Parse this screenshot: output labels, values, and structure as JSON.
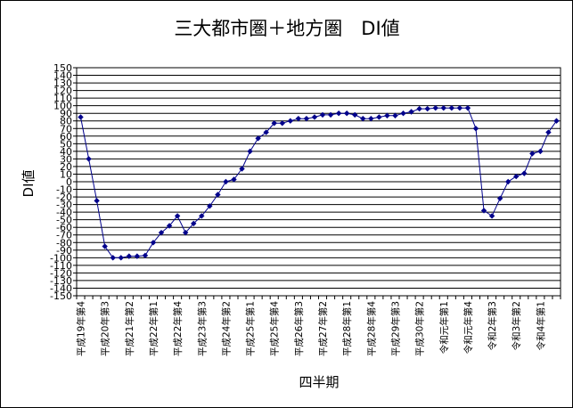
{
  "chart_data": {
    "type": "line",
    "title": "三大都市圏＋地方圏　DI値",
    "xlabel": "四半期",
    "ylabel": "DI値",
    "ylim": [
      -150,
      150
    ],
    "y_step": 10,
    "grid": true,
    "legend": "none",
    "colors": {
      "series": "#00008B",
      "grid": "#000000",
      "background": "#FFFFFF"
    },
    "x_tick_labels": [
      "平成19年第4",
      "平成20年第3",
      "平成21年第2",
      "平成22年第1",
      "平成22年第4",
      "平成23年第3",
      "平成24年第2",
      "平成25年第1",
      "平成25年第4",
      "平成26年第3",
      "平成27年第2",
      "平成28年第1",
      "平成28年第4",
      "平成29年第3",
      "平成30年第2",
      "令和元年第1",
      "令和元年第4",
      "令和2年第3",
      "令和3年第2",
      "令和4年第1"
    ],
    "series": [
      {
        "values": [
          85,
          30,
          -25,
          -85,
          -100,
          -100,
          -98,
          -98,
          -97,
          -80,
          -67,
          -58,
          -45,
          -67,
          -55,
          -45,
          -32,
          -17,
          0,
          3,
          17,
          40,
          57,
          65,
          77,
          77,
          80,
          83,
          83,
          85,
          88,
          88,
          90,
          90,
          88,
          83,
          83,
          85,
          87,
          87,
          90,
          92,
          96,
          96,
          97,
          97,
          97,
          97,
          97,
          70,
          -38,
          -45,
          -22,
          0,
          7,
          11,
          37,
          40,
          65,
          80
        ]
      }
    ]
  }
}
